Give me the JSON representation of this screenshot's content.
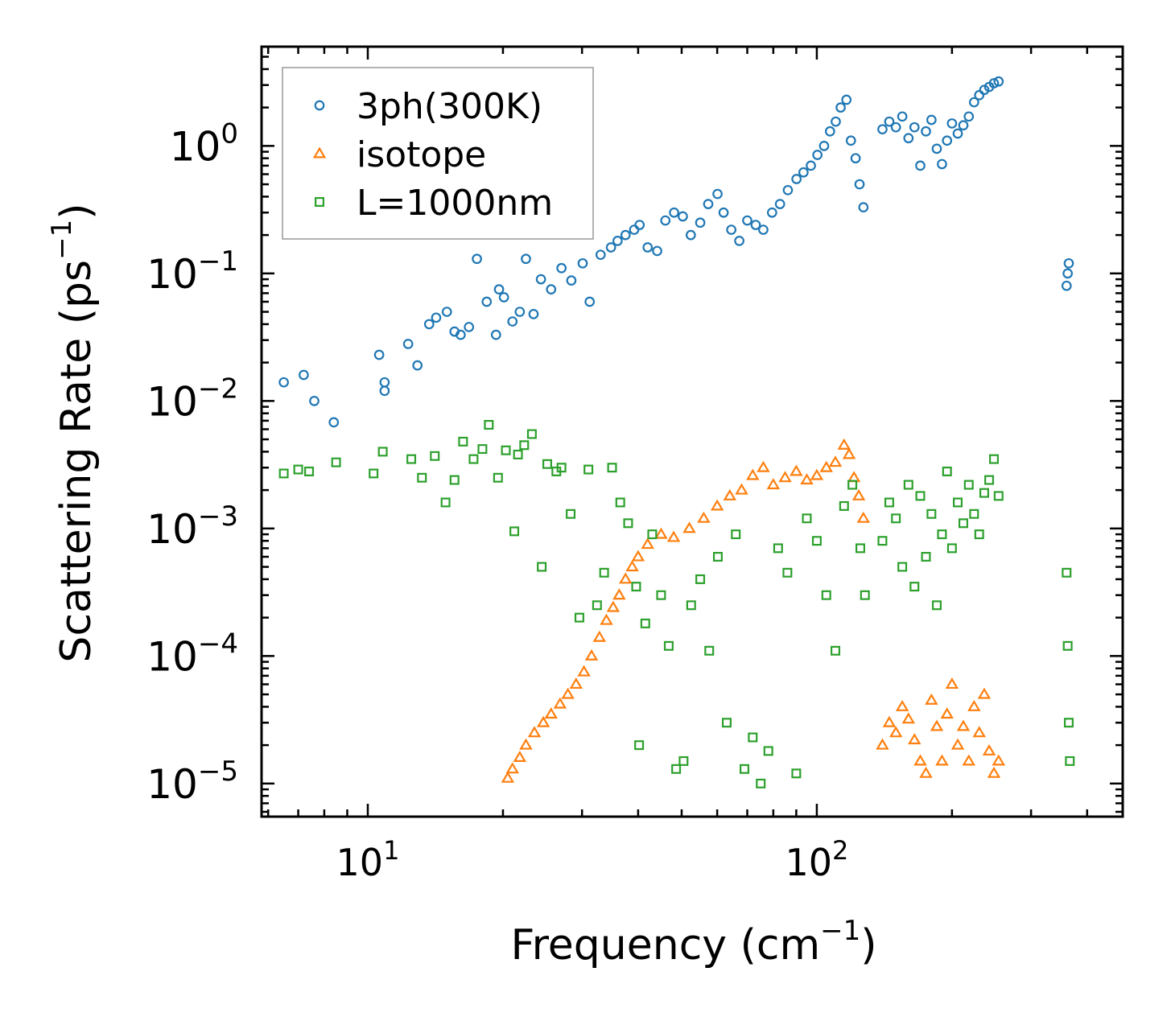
{
  "chart_data": {
    "type": "scatter",
    "title": "",
    "xlabel": "Frequency (cm",
    "xlabel_sup": "−1",
    "xlabel_end": ")",
    "ylabel": "Scattering Rate (ps",
    "ylabel_sup": "−1",
    "ylabel_end": ")",
    "xscale": "log",
    "yscale": "log",
    "xlim": [
      5.8,
      480
    ],
    "ylim": [
      5.5e-06,
      6.0
    ],
    "legend_position": "top-left",
    "xticks": [
      {
        "value": 10,
        "base": "10",
        "exp": "1"
      },
      {
        "value": 100,
        "base": "10",
        "exp": "2"
      }
    ],
    "yticks": [
      {
        "value": 1,
        "base": "10",
        "exp": "0"
      },
      {
        "value": 0.1,
        "base": "10",
        "exp": "−1"
      },
      {
        "value": 0.01,
        "base": "10",
        "exp": "−2"
      },
      {
        "value": 0.001,
        "base": "10",
        "exp": "−3"
      },
      {
        "value": 0.0001,
        "base": "10",
        "exp": "−4"
      },
      {
        "value": 1e-05,
        "base": "10",
        "exp": "−5"
      }
    ],
    "series": [
      {
        "name": "3ph(300K)",
        "marker": "circle",
        "color": "#1f77b4",
        "x": [
          6.5,
          7.2,
          7.6,
          8.4,
          10.6,
          10.9,
          10.9,
          12.3,
          12.9,
          13.7,
          14.2,
          15.0,
          15.6,
          16.1,
          16.8,
          17.5,
          18.4,
          19.3,
          19.6,
          20.1,
          21.0,
          21.8,
          22.5,
          23.4,
          24.3,
          25.6,
          27.0,
          28.4,
          30.1,
          31.2,
          33.0,
          34.8,
          36.0,
          37.5,
          39.2,
          40.3,
          42.0,
          44.1,
          46.0,
          48.1,
          50.3,
          52.4,
          55.0,
          57.3,
          60.1,
          62.0,
          64.5,
          67.2,
          70.0,
          73.1,
          76.0,
          79.5,
          82.8,
          86.2,
          90.1,
          93.4,
          97.0,
          100.3,
          103.8,
          107.0,
          110.2,
          113.0,
          116.4,
          119.1,
          122.0,
          124.5,
          127.0,
          140.0,
          145.0,
          150.0,
          155.0,
          160.0,
          165.0,
          170.0,
          175.0,
          180.0,
          185.0,
          190.0,
          195.0,
          200.0,
          206.0,
          212.0,
          218.0,
          224.0,
          230.0,
          236.0,
          242.0,
          248.0,
          254.0,
          360.0,
          362.0,
          364.0
        ],
        "y": [
          0.014,
          0.016,
          0.01,
          0.0068,
          0.023,
          0.014,
          0.012,
          0.028,
          0.019,
          0.04,
          0.045,
          0.05,
          0.035,
          0.033,
          0.038,
          0.13,
          0.06,
          0.033,
          0.075,
          0.065,
          0.042,
          0.05,
          0.13,
          0.048,
          0.09,
          0.075,
          0.11,
          0.088,
          0.12,
          0.06,
          0.14,
          0.16,
          0.18,
          0.2,
          0.22,
          0.24,
          0.16,
          0.15,
          0.26,
          0.3,
          0.28,
          0.2,
          0.25,
          0.35,
          0.42,
          0.3,
          0.22,
          0.18,
          0.26,
          0.24,
          0.22,
          0.3,
          0.35,
          0.45,
          0.55,
          0.62,
          0.7,
          0.85,
          1.0,
          1.3,
          1.55,
          2.0,
          2.3,
          1.1,
          0.8,
          0.5,
          0.33,
          1.35,
          1.55,
          1.4,
          1.7,
          1.15,
          1.4,
          0.7,
          1.3,
          1.6,
          0.95,
          0.72,
          1.1,
          1.5,
          1.25,
          1.45,
          1.7,
          2.2,
          2.5,
          2.75,
          2.9,
          3.1,
          3.2,
          0.08,
          0.1,
          0.12
        ]
      },
      {
        "name": "isotope",
        "marker": "triangle",
        "color": "#ff7f0e",
        "x": [
          20.5,
          21.0,
          21.8,
          22.5,
          23.5,
          24.6,
          25.6,
          26.8,
          27.9,
          29.1,
          30.3,
          31.5,
          32.8,
          34.0,
          35.2,
          36.3,
          37.5,
          38.8,
          40.0,
          42.0,
          45.0,
          48.0,
          52.0,
          56.0,
          60.0,
          64.0,
          68.0,
          72.0,
          76.0,
          80.0,
          85.0,
          90.0,
          95.0,
          100.0,
          105.0,
          110.0,
          115.0,
          118.0,
          121.0,
          124.0,
          127.0,
          140.0,
          145.0,
          150.0,
          155.0,
          160.0,
          165.0,
          170.0,
          175.0,
          180.0,
          185.0,
          190.0,
          195.0,
          200.0,
          206.0,
          212.0,
          218.0,
          224.0,
          230.0,
          236.0,
          242.0,
          248.0,
          254.0
        ],
        "y": [
          1.1e-05,
          1.3e-05,
          1.6e-05,
          2e-05,
          2.5e-05,
          3e-05,
          3.5e-05,
          4.2e-05,
          5e-05,
          6e-05,
          7.5e-05,
          0.0001,
          0.00014,
          0.00019,
          0.00024,
          0.0003,
          0.0004,
          0.0005,
          0.0006,
          0.00075,
          0.0009,
          0.00085,
          0.001,
          0.0012,
          0.0015,
          0.0018,
          0.002,
          0.0026,
          0.003,
          0.0022,
          0.0025,
          0.0028,
          0.0024,
          0.0026,
          0.003,
          0.0033,
          0.0045,
          0.0038,
          0.0025,
          0.0018,
          0.0012,
          2e-05,
          3e-05,
          2.5e-05,
          4e-05,
          3.2e-05,
          2.2e-05,
          1.5e-05,
          1.2e-05,
          4.5e-05,
          2.8e-05,
          1.5e-05,
          3.5e-05,
          6e-05,
          2e-05,
          2.8e-05,
          1.5e-05,
          4e-05,
          2.5e-05,
          5e-05,
          1.8e-05,
          1.2e-05,
          1.5e-05
        ]
      },
      {
        "name": "L=1000nm",
        "marker": "square",
        "color": "#2ca02c",
        "x": [
          6.5,
          7.0,
          7.4,
          8.5,
          10.3,
          10.8,
          12.5,
          13.2,
          14.1,
          14.9,
          15.6,
          16.3,
          17.2,
          18.0,
          18.6,
          19.5,
          20.3,
          21.2,
          21.6,
          22.3,
          23.2,
          24.4,
          25.1,
          26.3,
          27.0,
          28.3,
          29.6,
          31.0,
          32.4,
          33.6,
          35.0,
          36.5,
          38.0,
          39.6,
          40.2,
          41.5,
          43.0,
          45.0,
          46.8,
          48.6,
          50.5,
          52.5,
          55.0,
          57.6,
          60.2,
          63.0,
          66.0,
          69.0,
          72.0,
          75.0,
          78.0,
          82.0,
          86.0,
          90.0,
          95.0,
          100.0,
          105.0,
          110.0,
          115.0,
          120.0,
          125.0,
          128.0,
          140.0,
          145.0,
          150.0,
          155.0,
          160.0,
          165.0,
          170.0,
          175.0,
          180.0,
          185.0,
          190.0,
          195.0,
          200.0,
          206.0,
          212.0,
          218.0,
          224.0,
          230.0,
          236.0,
          242.0,
          248.0,
          254.0,
          360.0,
          362.0,
          364.0,
          366.0
        ],
        "y": [
          0.0027,
          0.0029,
          0.0028,
          0.0033,
          0.0027,
          0.004,
          0.0035,
          0.0025,
          0.0037,
          0.0016,
          0.0024,
          0.0048,
          0.0035,
          0.0042,
          0.0065,
          0.0025,
          0.0041,
          0.00095,
          0.0038,
          0.0045,
          0.0055,
          0.0005,
          0.0032,
          0.0028,
          0.003,
          0.0013,
          0.0002,
          0.0029,
          0.00025,
          0.00045,
          0.003,
          0.0016,
          0.0011,
          0.00035,
          2e-05,
          0.00018,
          0.0009,
          0.0003,
          0.00012,
          1.3e-05,
          1.5e-05,
          0.00025,
          0.0004,
          0.00011,
          0.0006,
          3e-05,
          0.0009,
          1.3e-05,
          2.3e-05,
          1e-05,
          1.8e-05,
          0.0007,
          0.00045,
          1.2e-05,
          0.0012,
          0.0008,
          0.0003,
          0.00011,
          0.0015,
          0.0022,
          0.0007,
          0.0003,
          0.0008,
          0.0016,
          0.0012,
          0.0005,
          0.0022,
          0.00035,
          0.0018,
          0.0006,
          0.0013,
          0.00025,
          0.0009,
          0.0028,
          0.0007,
          0.0016,
          0.0011,
          0.0022,
          0.0013,
          0.0009,
          0.0019,
          0.0024,
          0.0035,
          0.0018,
          0.00045,
          0.00012,
          3e-05,
          1.5e-05
        ]
      }
    ]
  }
}
